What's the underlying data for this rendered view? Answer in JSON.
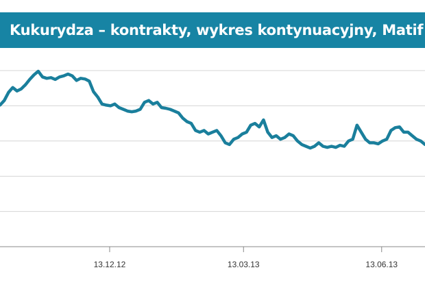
{
  "title": "Kukurydza – kontrakty, wykres kontynuacyjny, Matif",
  "colors": {
    "header_background": "#1784a4",
    "series_line": "#1a7f9c",
    "grid": "#d4d4d4",
    "axis": "#888888"
  },
  "chart_data": {
    "type": "line",
    "title": "Kukurydza – kontrakty, wykres kontynuacyjny, Matif",
    "xlabel": "",
    "ylabel": "",
    "grid": true,
    "legend": "none",
    "x_tick_labels": [
      {
        "label": "13.12.12",
        "t": 0.258
      },
      {
        "label": "13.03.13",
        "t": 0.573
      },
      {
        "label": "13.06.13",
        "t": 0.898
      }
    ],
    "x_range": [
      0,
      1
    ],
    "y_range": [
      0,
      5
    ],
    "series": [
      {
        "values": [
          [
            0.0,
            4.02
          ],
          [
            0.01,
            4.15
          ],
          [
            0.02,
            4.38
          ],
          [
            0.03,
            4.52
          ],
          [
            0.04,
            4.42
          ],
          [
            0.05,
            4.48
          ],
          [
            0.06,
            4.6
          ],
          [
            0.07,
            4.75
          ],
          [
            0.08,
            4.88
          ],
          [
            0.09,
            4.98
          ],
          [
            0.1,
            4.82
          ],
          [
            0.11,
            4.78
          ],
          [
            0.12,
            4.8
          ],
          [
            0.13,
            4.75
          ],
          [
            0.14,
            4.82
          ],
          [
            0.15,
            4.85
          ],
          [
            0.16,
            4.9
          ],
          [
            0.17,
            4.85
          ],
          [
            0.18,
            4.72
          ],
          [
            0.19,
            4.78
          ],
          [
            0.2,
            4.76
          ],
          [
            0.21,
            4.7
          ],
          [
            0.22,
            4.4
          ],
          [
            0.23,
            4.25
          ],
          [
            0.24,
            4.05
          ],
          [
            0.25,
            4.02
          ],
          [
            0.26,
            4.0
          ],
          [
            0.27,
            4.05
          ],
          [
            0.28,
            3.95
          ],
          [
            0.29,
            3.9
          ],
          [
            0.3,
            3.85
          ],
          [
            0.31,
            3.83
          ],
          [
            0.32,
            3.85
          ],
          [
            0.33,
            3.9
          ],
          [
            0.34,
            4.1
          ],
          [
            0.35,
            4.15
          ],
          [
            0.36,
            4.05
          ],
          [
            0.37,
            4.1
          ],
          [
            0.38,
            3.95
          ],
          [
            0.39,
            3.93
          ],
          [
            0.4,
            3.9
          ],
          [
            0.41,
            3.85
          ],
          [
            0.42,
            3.8
          ],
          [
            0.43,
            3.65
          ],
          [
            0.44,
            3.55
          ],
          [
            0.45,
            3.5
          ],
          [
            0.46,
            3.3
          ],
          [
            0.47,
            3.25
          ],
          [
            0.48,
            3.3
          ],
          [
            0.49,
            3.2
          ],
          [
            0.5,
            3.25
          ],
          [
            0.51,
            3.3
          ],
          [
            0.52,
            3.15
          ],
          [
            0.53,
            2.95
          ],
          [
            0.54,
            2.9
          ],
          [
            0.55,
            3.05
          ],
          [
            0.56,
            3.1
          ],
          [
            0.57,
            3.2
          ],
          [
            0.58,
            3.25
          ],
          [
            0.59,
            3.45
          ],
          [
            0.6,
            3.5
          ],
          [
            0.61,
            3.4
          ],
          [
            0.62,
            3.6
          ],
          [
            0.63,
            3.25
          ],
          [
            0.64,
            3.1
          ],
          [
            0.65,
            3.15
          ],
          [
            0.66,
            3.05
          ],
          [
            0.67,
            3.1
          ],
          [
            0.68,
            3.2
          ],
          [
            0.69,
            3.15
          ],
          [
            0.7,
            3.0
          ],
          [
            0.71,
            2.9
          ],
          [
            0.72,
            2.85
          ],
          [
            0.73,
            2.8
          ],
          [
            0.74,
            2.85
          ],
          [
            0.75,
            2.95
          ],
          [
            0.76,
            2.85
          ],
          [
            0.77,
            2.82
          ],
          [
            0.78,
            2.85
          ],
          [
            0.79,
            2.82
          ],
          [
            0.8,
            2.88
          ],
          [
            0.81,
            2.85
          ],
          [
            0.82,
            3.0
          ],
          [
            0.83,
            3.05
          ],
          [
            0.84,
            3.45
          ],
          [
            0.85,
            3.25
          ],
          [
            0.86,
            3.05
          ],
          [
            0.87,
            2.95
          ],
          [
            0.88,
            2.95
          ],
          [
            0.89,
            2.92
          ],
          [
            0.9,
            3.0
          ],
          [
            0.91,
            3.05
          ],
          [
            0.92,
            3.3
          ],
          [
            0.93,
            3.38
          ],
          [
            0.94,
            3.4
          ],
          [
            0.95,
            3.25
          ],
          [
            0.96,
            3.25
          ],
          [
            0.97,
            3.15
          ],
          [
            0.98,
            3.05
          ],
          [
            0.99,
            3.0
          ],
          [
            1.0,
            2.9
          ]
        ]
      }
    ]
  }
}
